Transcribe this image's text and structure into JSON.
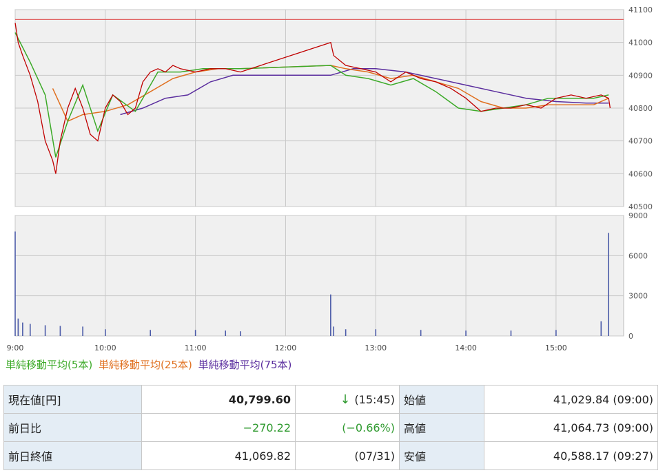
{
  "chart_data": {
    "type": "line",
    "price_axis": {
      "ylim": [
        40500,
        41100
      ],
      "ticks": [
        "41100",
        "41000",
        "40900",
        "40800",
        "40700",
        "40600",
        "40500"
      ]
    },
    "volume_axis": {
      "ylim": [
        0,
        9000
      ],
      "ticks": [
        "9000",
        "6000",
        "3000",
        "0"
      ]
    },
    "x_ticks": [
      "9:00",
      "10:00",
      "11:00",
      "12:00",
      "13:00",
      "14:00",
      "15:00"
    ],
    "prev_close_line": 41069.82,
    "colors": {
      "price": "#c00000",
      "ma5": "#3caa28",
      "ma25": "#e07020",
      "ma75": "#5a2d9e",
      "volume": "#4a5aa8",
      "prev_close": "#e06060"
    },
    "series": [
      {
        "name": "単純移動平均(5本)",
        "x": [
          "9:00",
          "9:10",
          "9:20",
          "9:27",
          "9:35",
          "9:45",
          "9:55",
          "10:05",
          "10:20",
          "10:35",
          "10:50",
          "11:05",
          "11:20",
          "11:30",
          "12:30",
          "12:40",
          "12:55",
          "13:10",
          "13:25",
          "13:40",
          "13:55",
          "14:10",
          "14:25",
          "14:40",
          "14:55",
          "15:10",
          "15:25",
          "15:35"
        ],
        "values": [
          41030,
          40940,
          40840,
          40650,
          40760,
          40870,
          40730,
          40840,
          40790,
          40910,
          40910,
          40920,
          40920,
          40920,
          40930,
          40900,
          40890,
          40870,
          40890,
          40850,
          40800,
          40790,
          40800,
          40810,
          40830,
          40830,
          40830,
          40840
        ]
      },
      {
        "name": "単純移動平均(25本)",
        "x": [
          "9:25",
          "9:35",
          "9:45",
          "10:00",
          "10:15",
          "10:30",
          "10:45",
          "11:00",
          "11:15",
          "11:30",
          "12:30",
          "12:40",
          "12:55",
          "13:10",
          "13:25",
          "13:40",
          "13:55",
          "14:10",
          "14:25",
          "14:40",
          "14:55",
          "15:10",
          "15:25",
          "15:35"
        ],
        "values": [
          40860,
          40760,
          40780,
          40790,
          40810,
          40850,
          40890,
          40910,
          40920,
          40920,
          40930,
          40920,
          40910,
          40890,
          40900,
          40880,
          40860,
          40820,
          40800,
          40800,
          40810,
          40810,
          40810,
          40830
        ]
      },
      {
        "name": "単純移動平均(75本)",
        "x": [
          "10:10",
          "10:25",
          "10:40",
          "10:55",
          "11:10",
          "11:25",
          "11:30",
          "12:30",
          "12:45",
          "13:00",
          "13:20",
          "13:40",
          "14:00",
          "14:20",
          "14:40",
          "15:00",
          "15:20",
          "15:35"
        ],
        "values": [
          40780,
          40800,
          40830,
          40840,
          40880,
          40900,
          40900,
          40900,
          40920,
          40920,
          40910,
          40890,
          40870,
          40850,
          40830,
          40820,
          40815,
          40815
        ]
      },
      {
        "name": "price",
        "x": [
          "9:00",
          "9:02",
          "9:05",
          "9:10",
          "9:15",
          "9:20",
          "9:25",
          "9:27",
          "9:30",
          "9:35",
          "9:40",
          "9:45",
          "9:50",
          "9:55",
          "10:00",
          "10:05",
          "10:10",
          "10:15",
          "10:20",
          "10:25",
          "10:30",
          "10:35",
          "10:40",
          "10:45",
          "10:50",
          "11:00",
          "11:10",
          "11:20",
          "11:30",
          "12:30",
          "12:32",
          "12:40",
          "12:50",
          "13:00",
          "13:10",
          "13:20",
          "13:30",
          "13:40",
          "13:50",
          "14:00",
          "14:10",
          "14:20",
          "14:30",
          "14:40",
          "14:50",
          "15:00",
          "15:10",
          "15:20",
          "15:30",
          "15:35",
          "15:36"
        ],
        "values": [
          41060,
          41000,
          40960,
          40900,
          40820,
          40700,
          40640,
          40600,
          40700,
          40800,
          40860,
          40800,
          40720,
          40700,
          40800,
          40840,
          40820,
          40780,
          40800,
          40880,
          40910,
          40920,
          40910,
          40930,
          40920,
          40910,
          40920,
          40920,
          40910,
          41000,
          40960,
          40930,
          40920,
          40910,
          40880,
          40910,
          40890,
          40880,
          40860,
          40830,
          40790,
          40800,
          40800,
          40810,
          40800,
          40830,
          40840,
          40830,
          40840,
          40830,
          40800
        ]
      }
    ],
    "volume": {
      "x": [
        "9:00",
        "9:02",
        "9:05",
        "9:10",
        "9:20",
        "9:30",
        "9:45",
        "10:00",
        "10:30",
        "11:00",
        "11:20",
        "11:30",
        "12:30",
        "12:32",
        "12:40",
        "13:00",
        "13:30",
        "14:00",
        "14:30",
        "15:00",
        "15:30",
        "15:35"
      ],
      "values": [
        7800,
        1300,
        1000,
        900,
        800,
        750,
        700,
        500,
        450,
        450,
        400,
        350,
        3100,
        700,
        500,
        500,
        450,
        400,
        400,
        450,
        1100,
        7700
      ]
    }
  },
  "legend": {
    "ma5": "単純移動平均(5本)",
    "ma25": "単純移動平均(25本)",
    "ma75": "単純移動平均(75本)"
  },
  "table": {
    "current_label": "現在値[円]",
    "current_value": "40,799.60",
    "current_arrow": "↓",
    "current_time": "(15:45)",
    "open_label": "始値",
    "open_value": "41,029.84 (09:00)",
    "change_label": "前日比",
    "change_value": "−270.22",
    "change_pct": "(−0.66%)",
    "high_label": "高値",
    "high_value": "41,064.73 (09:00)",
    "prevclose_label": "前日終値",
    "prevclose_value": "41,069.82",
    "prevclose_date": "(07/31)",
    "low_label": "安値",
    "low_value": "40,588.17 (09:27)"
  }
}
